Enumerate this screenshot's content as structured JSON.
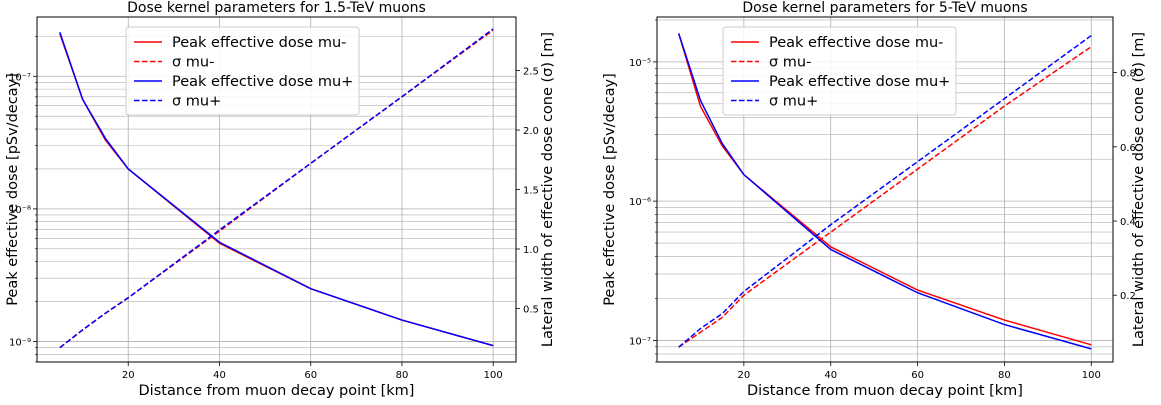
{
  "chart_data": [
    {
      "type": "line",
      "title": "Dose kernel parameters for 1.5-TeV muons",
      "xlabel": "Distance from muon decay point [km]",
      "ylabel_left": "Peak effective dose [pSv/decay]",
      "ylabel_right": "Lateral width of effective dose cone (σ) [m]",
      "xlim": [
        0,
        105
      ],
      "ylim_left": [
        7e-10,
        2.8e-07
      ],
      "yscale_left": "log",
      "ylim_right": [
        0.05,
        2.95
      ],
      "x_ticks": [
        "20",
        "40",
        "60",
        "80",
        "100"
      ],
      "y_left_ticks": [
        "10⁻⁹",
        "10⁻⁸",
        "10⁻⁷"
      ],
      "y_right_ticks": [
        "0.5",
        "1.0",
        "1.5",
        "2.0",
        "2.5"
      ],
      "grid": true,
      "legend_position": "top-center",
      "series": [
        {
          "name": "Peak effective dose mu-",
          "axis": "left",
          "color": "#ff0000",
          "dash": "solid",
          "x": [
            5,
            10,
            15,
            20,
            40,
            60,
            80,
            100
          ],
          "y": [
            2.1e-07,
            6.7e-08,
            3.3e-08,
            2e-08,
            5.5e-09,
            2.5e-09,
            1.45e-09,
            9.3e-10
          ]
        },
        {
          "name": "σ mu-",
          "axis": "right",
          "color": "#ff0000",
          "dash": "dashed",
          "x": [
            5,
            10,
            15,
            20,
            40,
            60,
            80,
            100
          ],
          "y": [
            0.17,
            0.32,
            0.46,
            0.59,
            1.15,
            1.72,
            2.28,
            2.84
          ]
        },
        {
          "name": "Peak effective dose mu+",
          "axis": "left",
          "color": "#0000ff",
          "dash": "solid",
          "x": [
            5,
            10,
            15,
            20,
            40,
            60,
            80,
            100
          ],
          "y": [
            2.15e-07,
            6.7e-08,
            3.4e-08,
            2e-08,
            5.6e-09,
            2.5e-09,
            1.45e-09,
            9.3e-10
          ]
        },
        {
          "name": "σ mu+",
          "axis": "right",
          "color": "#0000ff",
          "dash": "dashed",
          "x": [
            5,
            10,
            15,
            20,
            40,
            60,
            80,
            100
          ],
          "y": [
            0.17,
            0.32,
            0.46,
            0.59,
            1.16,
            1.72,
            2.28,
            2.85
          ]
        }
      ]
    },
    {
      "type": "line",
      "title": "Dose kernel parameters for 5-TeV muons",
      "xlabel": "Distance from muon decay point [km]",
      "ylabel_left": "Peak effective dose [pSv/decay]",
      "ylabel_right": "Lateral width of effective dose cone (σ) [m]",
      "xlim": [
        0,
        105
      ],
      "ylim_left": [
        7e-08,
        2.1e-05
      ],
      "yscale_left": "log",
      "ylim_right": [
        0.02,
        0.95
      ],
      "x_ticks": [
        "20",
        "40",
        "60",
        "80",
        "100"
      ],
      "y_left_ticks": [
        "10⁻⁷",
        "10⁻⁶",
        "10⁻⁵"
      ],
      "y_right_ticks": [
        "0.2",
        "0.4",
        "0.6",
        "0.8"
      ],
      "grid": true,
      "legend_position": "top-center",
      "series": [
        {
          "name": "Peak effective dose mu-",
          "axis": "left",
          "color": "#ff0000",
          "dash": "solid",
          "x": [
            5,
            10,
            15,
            20,
            40,
            60,
            80,
            100
          ],
          "y": [
            1.6e-05,
            4.8e-06,
            2.5e-06,
            1.55e-06,
            4.7e-07,
            2.3e-07,
            1.4e-07,
            9.3e-08
          ]
        },
        {
          "name": "σ mu-",
          "axis": "right",
          "color": "#ff0000",
          "dash": "dashed",
          "x": [
            5,
            10,
            15,
            20,
            40,
            60,
            80,
            100
          ],
          "y": [
            0.06,
            0.1,
            0.14,
            0.2,
            0.37,
            0.54,
            0.71,
            0.87
          ]
        },
        {
          "name": "Peak effective dose mu+",
          "axis": "left",
          "color": "#0000ff",
          "dash": "solid",
          "x": [
            5,
            10,
            15,
            20,
            40,
            60,
            80,
            100
          ],
          "y": [
            1.6e-05,
            5.3e-06,
            2.6e-06,
            1.55e-06,
            4.5e-07,
            2.2e-07,
            1.3e-07,
            8.7e-08
          ]
        },
        {
          "name": "σ mu+",
          "axis": "right",
          "color": "#0000ff",
          "dash": "dashed",
          "x": [
            5,
            10,
            15,
            20,
            40,
            60,
            80,
            100
          ],
          "y": [
            0.06,
            0.11,
            0.15,
            0.21,
            0.39,
            0.56,
            0.73,
            0.9
          ]
        }
      ]
    }
  ]
}
